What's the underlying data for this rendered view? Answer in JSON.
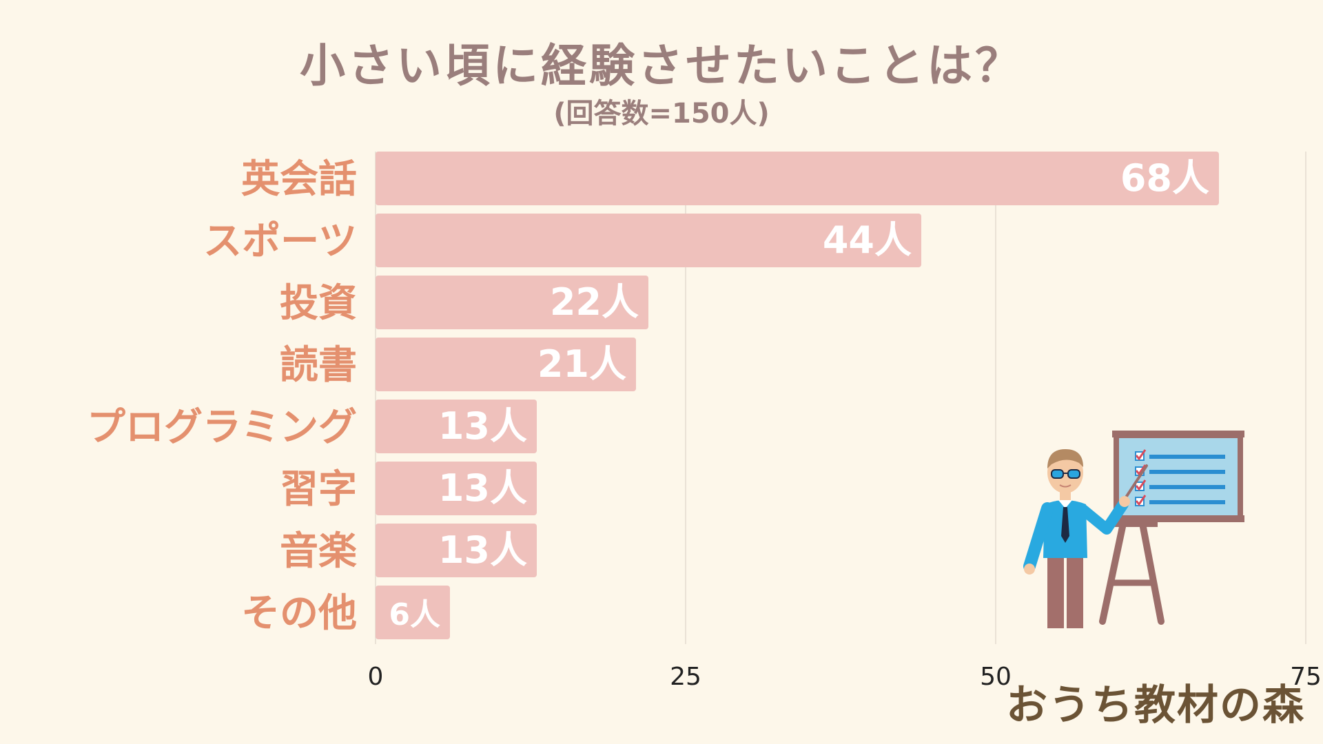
{
  "title": "小さい頃に経験させたいことは？",
  "subtitle": "(回答数=150人)",
  "brand": "おうち教材の森",
  "colors": {
    "background": "#fdf7ea",
    "bar": "#efc1bc",
    "bar_label": "#ffffff",
    "category": "#e4906e",
    "title": "#9a7e7c",
    "grid": "#e3dccf",
    "tick": "#222222"
  },
  "chart_data": {
    "type": "bar",
    "orientation": "horizontal",
    "title": "小さい頃に経験させたいことは？",
    "subtitle": "(回答数=150人)",
    "categories": [
      "英会話",
      "スポーツ",
      "投資",
      "読書",
      "プログラミング",
      "習字",
      "音楽",
      "その他"
    ],
    "values": [
      68,
      44,
      22,
      21,
      13,
      13,
      13,
      6
    ],
    "value_suffix": "人",
    "xlim": [
      0,
      75
    ],
    "xticks": [
      0,
      25,
      50,
      75
    ],
    "grid": true,
    "legend": "none"
  }
}
